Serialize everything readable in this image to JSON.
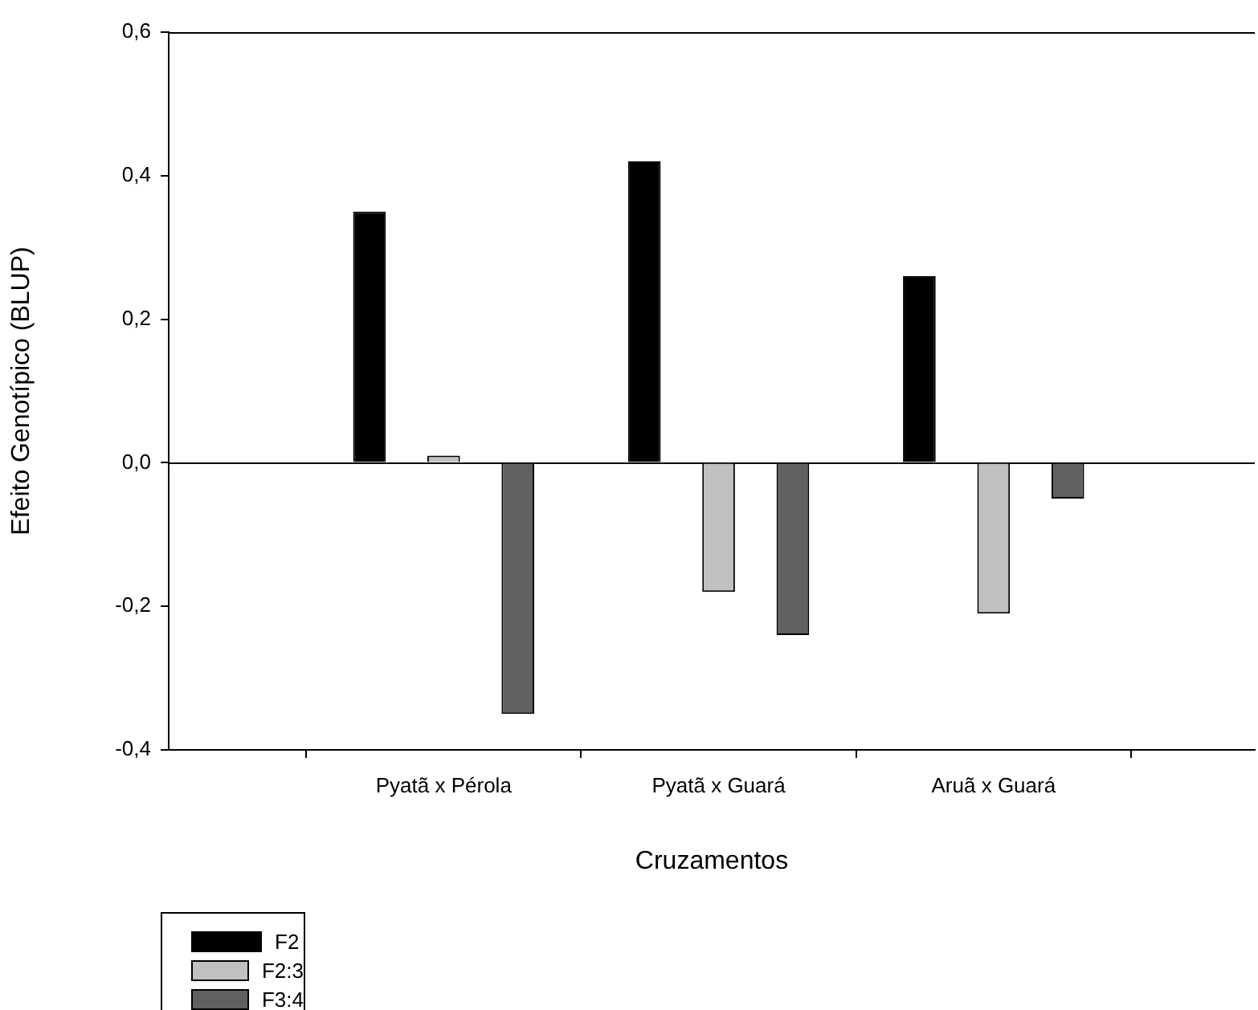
{
  "chart_data": {
    "type": "bar",
    "xlabel": "Cruzamentos",
    "ylabel": "Efeito Genotípico (BLUP)",
    "categories": [
      "Pyatã x Pérola",
      "Pyatã x Guará",
      "Aruã x Guará"
    ],
    "series": [
      {
        "name": "F2",
        "color": "#000000",
        "values": [
          0.35,
          0.42,
          0.26
        ]
      },
      {
        "name": "F2:3",
        "color": "#c0c0c0",
        "values": [
          0.01,
          -0.18,
          -0.21
        ]
      },
      {
        "name": "F3:4",
        "color": "#606060",
        "values": [
          -0.35,
          -0.24,
          -0.05
        ]
      }
    ],
    "ylim": [
      -0.4,
      0.6
    ],
    "yticks": [
      {
        "value": -0.4,
        "label": "-0,4"
      },
      {
        "value": -0.2,
        "label": "-0,2"
      },
      {
        "value": 0,
        "label": "0,0"
      },
      {
        "value": 0.2,
        "label": "0,2"
      },
      {
        "value": 0.4,
        "label": "0,4"
      },
      {
        "value": 0.6,
        "label": "0,6"
      }
    ],
    "ref_lines": [
      {
        "axis": "y",
        "value": 0,
        "color": "#000000"
      }
    ],
    "grid": false,
    "legend": "bottom left"
  }
}
